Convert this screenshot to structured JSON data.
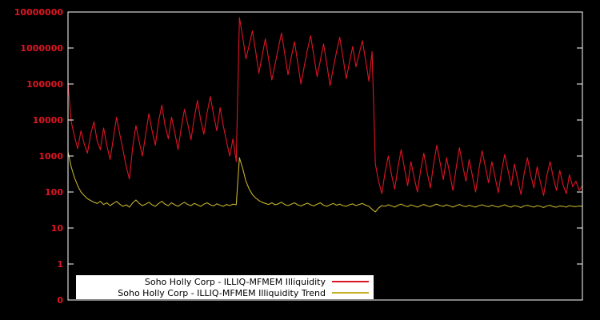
{
  "figure": {
    "background": "#000000",
    "frame_color": "#ffffff",
    "tick_label_color": "#e01423"
  },
  "chart_data": {
    "type": "line",
    "title": "",
    "xlabel": "",
    "ylabel": "",
    "y_scale": "log",
    "grid": false,
    "legend_position": "bottom-center",
    "y_ticks": [
      "10000000",
      "1000000",
      "100000",
      "10000",
      "1000",
      "100",
      "10",
      "1",
      "0"
    ],
    "ylim": [
      1,
      10000000
    ],
    "series": [
      {
        "name": "Soho Holly Corp - ILLIQ-MFMEM Illiquidity",
        "color": "#dd1423",
        "values": [
          110000,
          9000,
          3500,
          1600,
          5000,
          2200,
          1200,
          4000,
          9000,
          2600,
          1500,
          6000,
          2000,
          800,
          3000,
          12000,
          4000,
          1500,
          500,
          230,
          1800,
          7000,
          2500,
          1000,
          4000,
          15000,
          5000,
          2000,
          9000,
          26000,
          7000,
          3000,
          12000,
          4500,
          1500,
          6000,
          20000,
          8000,
          2800,
          11000,
          35000,
          10000,
          4000,
          16000,
          45000,
          14000,
          5000,
          22000,
          7000,
          2500,
          1000,
          3000,
          700,
          7000000,
          2000000,
          500000,
          1200000,
          3000000,
          800000,
          200000,
          600000,
          1800000,
          500000,
          130000,
          350000,
          1000000,
          2600000,
          700000,
          180000,
          550000,
          1500000,
          400000,
          100000,
          300000,
          900000,
          2200000,
          600000,
          160000,
          450000,
          1300000,
          350000,
          90000,
          280000,
          800000,
          2000000,
          550000,
          140000,
          400000,
          1100000,
          300000,
          700000,
          1600000,
          450000,
          120000,
          800000,
          600,
          200,
          90,
          350,
          1000,
          300,
          120,
          500,
          1500,
          450,
          150,
          700,
          250,
          100,
          400,
          1200,
          350,
          130,
          600,
          2000,
          650,
          220,
          900,
          320,
          110,
          480,
          1700,
          550,
          200,
          800,
          280,
          100,
          420,
          1400,
          500,
          180,
          700,
          260,
          95,
          380,
          1100,
          400,
          150,
          600,
          220,
          85,
          330,
          900,
          300,
          130,
          500,
          190,
          80,
          280,
          700,
          250,
          110,
          400,
          160,
          90,
          300,
          140,
          200,
          110,
          150
        ]
      },
      {
        "name": "Soho Holly Corp - ILLIQ-MFMEM Illiquidity Trend",
        "color": "#c3b02c",
        "values": [
          1300,
          500,
          250,
          150,
          100,
          80,
          65,
          58,
          52,
          48,
          55,
          45,
          50,
          42,
          48,
          55,
          46,
          40,
          44,
          38,
          50,
          60,
          48,
          42,
          46,
          52,
          44,
          40,
          48,
          55,
          46,
          42,
          50,
          44,
          40,
          46,
          52,
          45,
          42,
          48,
          44,
          40,
          46,
          50,
          44,
          41,
          47,
          43,
          40,
          45,
          42,
          46,
          44,
          900,
          450,
          200,
          120,
          85,
          68,
          58,
          52,
          48,
          45,
          50,
          44,
          47,
          52,
          45,
          42,
          46,
          50,
          44,
          41,
          45,
          49,
          44,
          41,
          46,
          50,
          43,
          40,
          44,
          48,
          43,
          46,
          42,
          40,
          44,
          47,
          42,
          45,
          48,
          43,
          40,
          33,
          28,
          36,
          42,
          40,
          44,
          41,
          38,
          43,
          46,
          42,
          39,
          44,
          41,
          38,
          42,
          45,
          41,
          39,
          43,
          46,
          42,
          40,
          44,
          41,
          38,
          42,
          45,
          41,
          39,
          43,
          40,
          38,
          42,
          44,
          41,
          39,
          43,
          40,
          38,
          41,
          44,
          40,
          38,
          42,
          40,
          37,
          41,
          43,
          40,
          38,
          42,
          40,
          37,
          41,
          43,
          39,
          38,
          41,
          40,
          38,
          42,
          40,
          39,
          41,
          40
        ]
      }
    ]
  },
  "legend": {
    "item1_label": "Soho Holly Corp - ILLIQ-MFMEM Illiquidity",
    "item2_label": "Soho Holly Corp - ILLIQ-MFMEM Illiquidity Trend"
  }
}
